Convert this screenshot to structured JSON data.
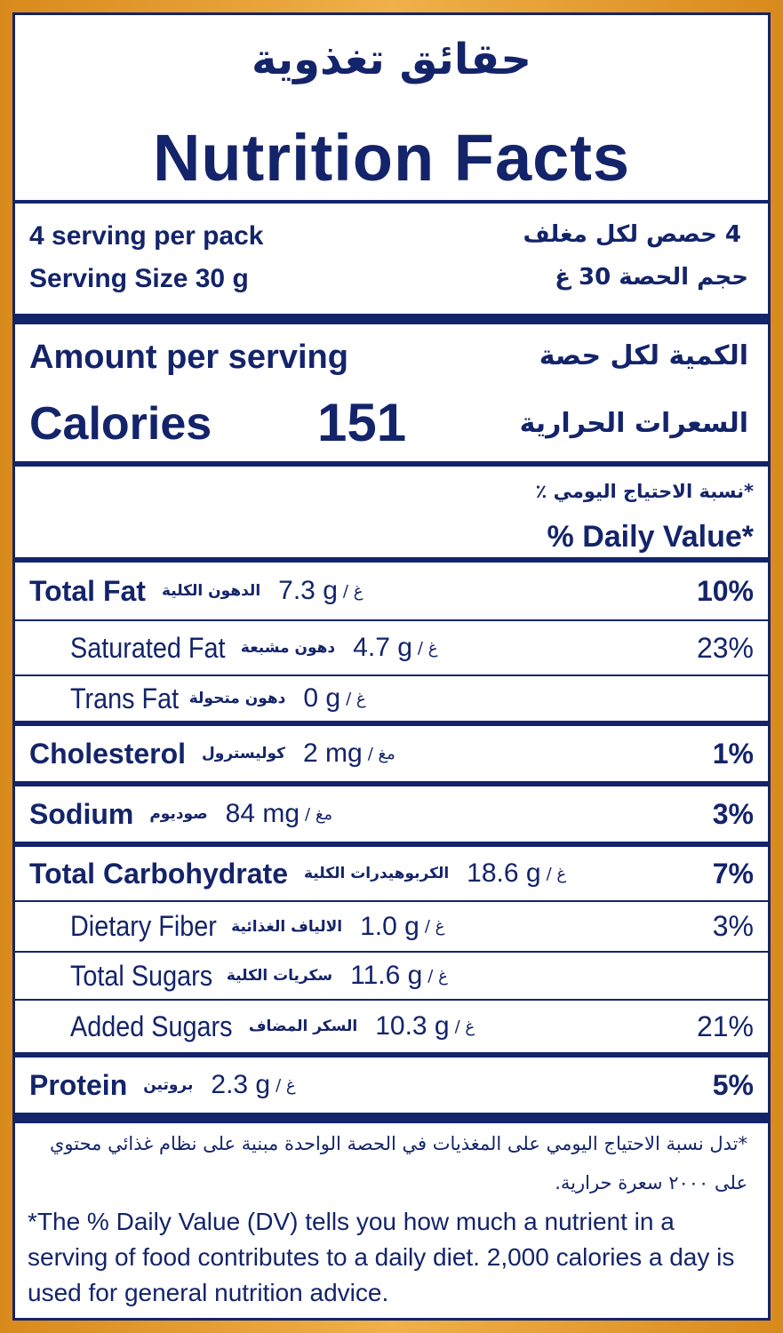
{
  "header": {
    "title_ar": "حقائق تغذوية",
    "title_en": "Nutrition Facts"
  },
  "servings": {
    "per_pack": "4 serving per pack",
    "size": "Serving Size 30 g",
    "per_pack_ar": "4 حصص لكل مغلف",
    "size_ar": "حجم الحصة 30 غ"
  },
  "amount": {
    "label": "Amount per serving",
    "label_ar": "الكمية لكل حصة"
  },
  "calories": {
    "label": "Calories",
    "value": 151,
    "label_ar": "السعرات الحرارية"
  },
  "daily_value": {
    "label_ar": "*نسبة الاحتياج اليومي ٪",
    "label": "% Daily Value*"
  },
  "nutrients": [
    {
      "name": "Total Fat",
      "name_ar": "الدهون الكلية",
      "amount": "7.3 g",
      "unit_ar": "/ غ",
      "dv": "10%"
    },
    {
      "name": "Saturated Fat",
      "name_ar": "دهون مشبعة",
      "amount": "4.7 g",
      "unit_ar": "/ غ",
      "dv": "23%"
    },
    {
      "name": "Trans Fat",
      "name_ar": "دهون متحولة",
      "amount": "0 g",
      "unit_ar": "/ غ"
    },
    {
      "name": "Cholesterol",
      "name_ar": "كوليسترول",
      "amount": "2 mg",
      "unit_ar": "/ مغ",
      "dv": "1%"
    },
    {
      "name": "Sodium",
      "name_ar": "صوديوم",
      "amount": "84 mg",
      "unit_ar": "/ مغ",
      "dv": "3%"
    },
    {
      "name": "Total Carbohydrate",
      "name_ar": "الكربوهيدرات الكلية",
      "amount": "18.6 g",
      "unit_ar": "/ غ",
      "dv": "7%"
    },
    {
      "name": "Dietary Fiber",
      "name_ar": "الالياف الغذائية",
      "amount": "1.0 g",
      "unit_ar": "/ غ",
      "dv": "3%"
    },
    {
      "name": "Total Sugars",
      "name_ar": "سكريات الكلية",
      "amount": "11.6 g",
      "unit_ar": "/ غ"
    },
    {
      "name": "Added Sugars",
      "name_ar": "السكر المضاف",
      "amount": "10.3 g",
      "unit_ar": "/ غ",
      "dv": "21%"
    },
    {
      "name": "Protein",
      "name_ar": "بروتين",
      "amount": "2.3 g",
      "unit_ar": "/ غ",
      "dv": "5%"
    }
  ],
  "footnote": {
    "ar": "*تدل نسبة الاحتياج اليومي على المغذيات في الحصة الواحدة مبنية على نظام غذائي محتوي على ٢٠٠٠ سعرة حرارية.",
    "en": "*The % Daily Value (DV) tells you how much a nutrient in a serving of food contributes to a daily diet. 2,000 calories a day is used for general nutrition advice."
  }
}
